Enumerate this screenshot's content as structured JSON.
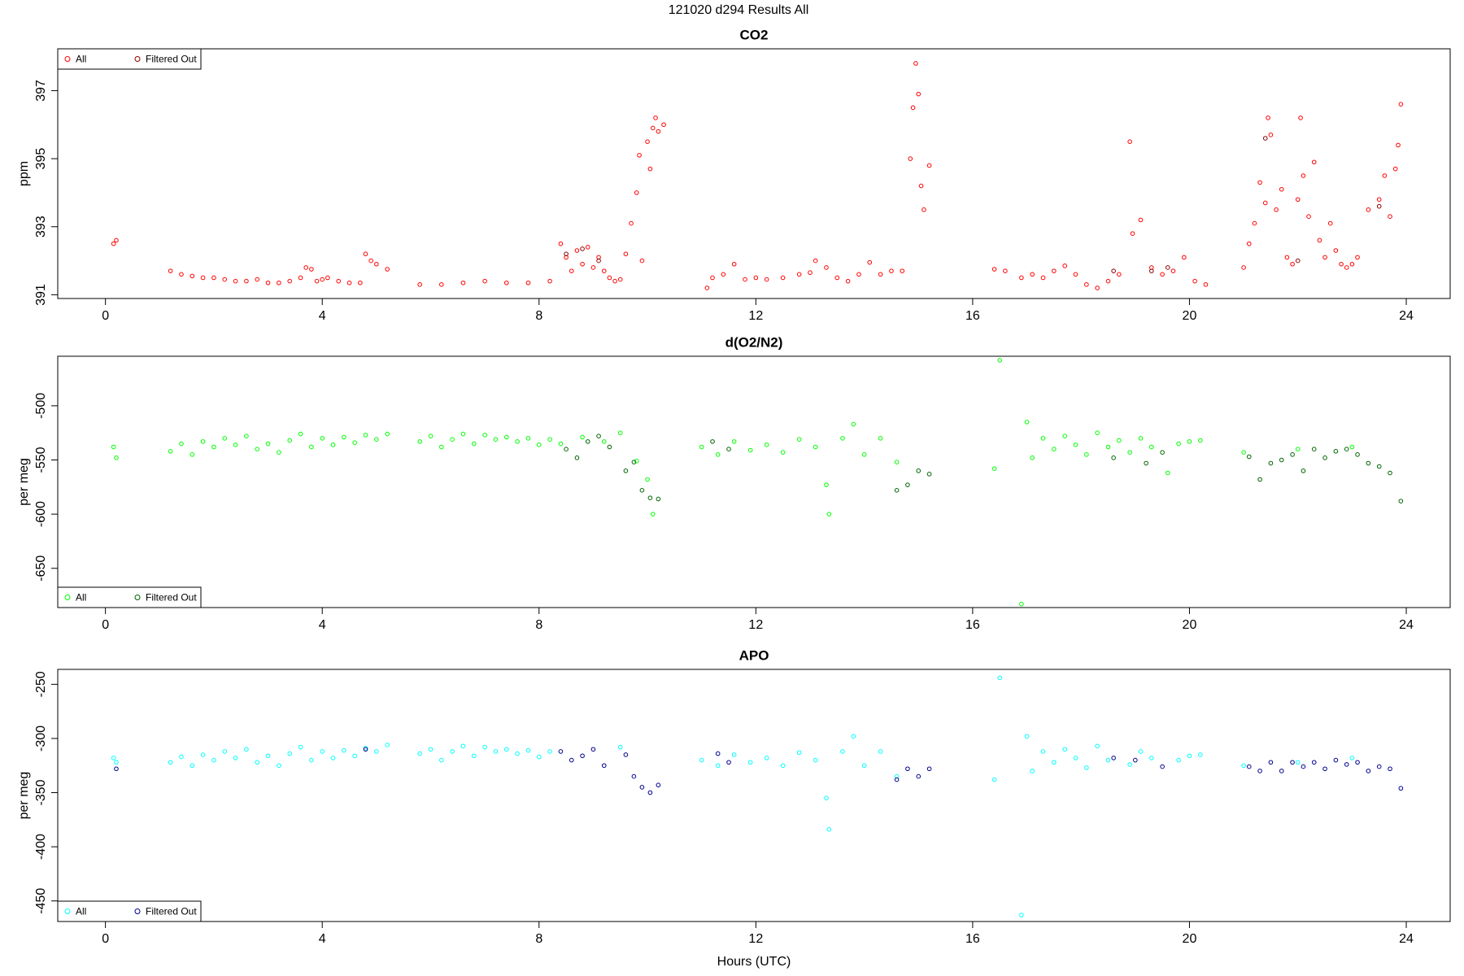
{
  "title": "121020   d294   Results All",
  "chart_data": [
    {
      "type": "scatter",
      "title": "CO2",
      "ylabel": "ppm",
      "legend": "top-left",
      "xlim": [
        -0.88,
        24.81
      ],
      "xticks": [
        0,
        4,
        8,
        12,
        16,
        20,
        24
      ],
      "ylim": [
        390.89,
        398.23
      ],
      "yticks": [
        391,
        393,
        395,
        397
      ],
      "series": [
        {
          "name": "All",
          "color": "#ff0000",
          "x": [
            0.15,
            0.2,
            1.2,
            1.4,
            1.6,
            1.8,
            2.0,
            2.2,
            2.4,
            2.6,
            2.8,
            3.0,
            3.2,
            3.4,
            3.6,
            3.7,
            3.8,
            3.9,
            4.0,
            4.1,
            4.3,
            4.5,
            4.7,
            4.8,
            4.9,
            5.0,
            5.2,
            5.8,
            6.2,
            6.6,
            7.0,
            7.4,
            7.8,
            8.2,
            8.4,
            8.5,
            8.6,
            8.7,
            8.8,
            8.9,
            9.0,
            9.1,
            9.2,
            9.3,
            9.4,
            9.5,
            9.6,
            9.7,
            9.8,
            9.85,
            9.9,
            10.0,
            10.05,
            10.1,
            10.15,
            10.2,
            10.3,
            11.1,
            11.2,
            11.4,
            11.6,
            11.8,
            12.0,
            12.2,
            12.5,
            12.8,
            13.0,
            13.1,
            13.3,
            13.5,
            13.7,
            13.9,
            14.1,
            14.3,
            14.5,
            14.7,
            14.85,
            14.9,
            14.95,
            15.0,
            15.05,
            15.1,
            15.2,
            16.4,
            16.6,
            16.9,
            17.1,
            17.3,
            17.5,
            17.7,
            17.9,
            18.1,
            18.3,
            18.5,
            18.7,
            18.9,
            18.95,
            19.1,
            19.3,
            19.5,
            19.7,
            19.9,
            20.1,
            20.3,
            21.0,
            21.1,
            21.2,
            21.3,
            21.4,
            21.45,
            21.5,
            21.6,
            21.7,
            21.8,
            21.9,
            22.0,
            22.05,
            22.1,
            22.2,
            22.3,
            22.4,
            22.5,
            22.6,
            22.7,
            22.8,
            22.9,
            23.0,
            23.1,
            23.3,
            23.5,
            23.6,
            23.7,
            23.8,
            23.85,
            23.9
          ],
          "values": [
            392.5,
            392.6,
            391.7,
            391.6,
            391.55,
            391.5,
            391.5,
            391.45,
            391.4,
            391.4,
            391.45,
            391.35,
            391.35,
            391.4,
            391.5,
            391.8,
            391.75,
            391.4,
            391.45,
            391.5,
            391.4,
            391.35,
            391.35,
            392.2,
            392.0,
            391.9,
            391.75,
            391.3,
            391.3,
            391.35,
            391.4,
            391.35,
            391.35,
            391.4,
            392.5,
            392.1,
            391.7,
            392.3,
            391.9,
            392.4,
            391.8,
            392.1,
            391.7,
            391.5,
            391.4,
            391.45,
            392.2,
            393.1,
            394.0,
            395.1,
            392.0,
            395.5,
            394.7,
            395.9,
            396.2,
            395.8,
            396.0,
            391.2,
            391.5,
            391.6,
            391.9,
            391.45,
            391.5,
            391.45,
            391.5,
            391.6,
            391.65,
            392.0,
            391.8,
            391.5,
            391.4,
            391.6,
            391.95,
            391.6,
            391.7,
            391.7,
            395.0,
            396.5,
            397.8,
            396.9,
            394.2,
            393.5,
            394.8,
            391.75,
            391.7,
            391.5,
            391.6,
            391.5,
            391.7,
            391.85,
            391.6,
            391.3,
            391.2,
            391.4,
            391.6,
            395.5,
            392.8,
            393.2,
            391.8,
            391.6,
            391.7,
            392.1,
            391.4,
            391.3,
            391.8,
            392.5,
            393.1,
            394.3,
            393.7,
            396.2,
            395.7,
            393.5,
            394.1,
            392.1,
            391.9,
            393.8,
            396.2,
            394.5,
            393.3,
            394.9,
            392.6,
            392.1,
            393.1,
            392.3,
            391.9,
            391.8,
            391.9,
            392.1,
            393.5,
            393.8,
            394.5,
            393.3,
            394.7,
            395.4,
            396.6
          ]
        },
        {
          "name": "Filtered Out",
          "color": "#8b0000",
          "x": [
            8.5,
            8.8,
            9.1,
            18.6,
            19.3,
            19.6,
            21.4,
            22.0,
            23.5
          ],
          "values": [
            392.2,
            392.35,
            392.0,
            391.7,
            391.7,
            391.8,
            395.6,
            392.0,
            393.6
          ]
        }
      ]
    },
    {
      "type": "scatter",
      "title": "d(O2/N2)",
      "ylabel": "per meg",
      "legend": "bottom-left",
      "xlim": [
        -0.88,
        24.81
      ],
      "xticks": [
        0,
        4,
        8,
        12,
        16,
        20,
        24
      ],
      "ylim": [
        -686.2,
        -454.3
      ],
      "yticks": [
        -650,
        -600,
        -550,
        -500
      ],
      "series": [
        {
          "name": "All",
          "color": "#00ff00",
          "x": [
            0.15,
            0.2,
            1.2,
            1.4,
            1.6,
            1.8,
            2.0,
            2.2,
            2.4,
            2.6,
            2.8,
            3.0,
            3.2,
            3.4,
            3.6,
            3.8,
            4.0,
            4.2,
            4.4,
            4.6,
            4.8,
            5.0,
            5.2,
            5.8,
            6.0,
            6.2,
            6.4,
            6.6,
            6.8,
            7.0,
            7.2,
            7.4,
            7.6,
            7.8,
            8.0,
            8.2,
            8.4,
            8.8,
            9.2,
            9.5,
            9.8,
            10.0,
            10.1,
            11.0,
            11.3,
            11.6,
            11.9,
            12.2,
            12.5,
            12.8,
            13.1,
            13.3,
            13.35,
            13.6,
            13.8,
            14.0,
            14.3,
            14.6,
            16.4,
            16.5,
            16.9,
            17.0,
            17.1,
            17.3,
            17.5,
            17.7,
            17.9,
            18.1,
            18.3,
            18.5,
            18.7,
            18.9,
            19.1,
            19.3,
            19.6,
            19.8,
            20.0,
            20.2,
            21.0,
            22.0,
            23.0
          ],
          "values": [
            -538,
            -548,
            -542,
            -535,
            -545,
            -533,
            -538,
            -530,
            -536,
            -528,
            -540,
            -535,
            -543,
            -532,
            -526,
            -538,
            -530,
            -536,
            -529,
            -534,
            -527,
            -531,
            -526,
            -533,
            -528,
            -538,
            -531,
            -526,
            -535,
            -527,
            -531,
            -529,
            -533,
            -530,
            -536,
            -531,
            -535,
            -529,
            -533,
            -525,
            -551,
            -568,
            -600,
            -538,
            -545,
            -533,
            -541,
            -536,
            -543,
            -531,
            -538,
            -573,
            -600,
            -530,
            -517,
            -545,
            -530,
            -552,
            -558,
            -458,
            -683,
            -515,
            -548,
            -530,
            -540,
            -528,
            -536,
            -545,
            -525,
            -538,
            -532,
            -543,
            -530,
            -538,
            -562,
            -535,
            -533,
            -532,
            -543,
            -540,
            -538
          ]
        },
        {
          "name": "Filtered Out",
          "color": "#006400",
          "x": [
            8.5,
            8.7,
            8.9,
            9.1,
            9.3,
            9.6,
            9.75,
            9.9,
            10.05,
            10.2,
            11.2,
            11.5,
            14.6,
            14.8,
            15.0,
            15.2,
            18.6,
            19.2,
            19.5,
            21.1,
            21.3,
            21.5,
            21.7,
            21.9,
            22.1,
            22.3,
            22.5,
            22.7,
            22.9,
            23.1,
            23.3,
            23.5,
            23.7,
            23.9
          ],
          "values": [
            -540,
            -548,
            -533,
            -528,
            -538,
            -560,
            -552,
            -578,
            -585,
            -586,
            -533,
            -540,
            -578,
            -573,
            -560,
            -563,
            -548,
            -553,
            -543,
            -547,
            -568,
            -553,
            -550,
            -545,
            -560,
            -540,
            -548,
            -542,
            -540,
            -545,
            -553,
            -556,
            -562,
            -588
          ]
        }
      ]
    },
    {
      "type": "scatter",
      "title": "APO",
      "ylabel": "per meg",
      "xlabel": "Hours (UTC)",
      "legend": "bottom-left",
      "xlim": [
        -0.88,
        24.81
      ],
      "xticks": [
        0,
        4,
        8,
        12,
        16,
        20,
        24
      ],
      "ylim": [
        -469,
        -236.2
      ],
      "yticks": [
        -450,
        -400,
        -350,
        -300,
        -250
      ],
      "series": [
        {
          "name": "All",
          "color": "#00ffff",
          "x": [
            0.15,
            0.2,
            1.2,
            1.4,
            1.6,
            1.8,
            2.0,
            2.2,
            2.4,
            2.6,
            2.8,
            3.0,
            3.2,
            3.4,
            3.6,
            3.8,
            4.0,
            4.2,
            4.4,
            4.6,
            4.8,
            5.0,
            5.2,
            5.8,
            6.0,
            6.2,
            6.4,
            6.6,
            6.8,
            7.0,
            7.2,
            7.4,
            7.6,
            7.8,
            8.0,
            8.2,
            9.5,
            11.0,
            11.3,
            11.6,
            11.9,
            12.2,
            12.5,
            12.8,
            13.1,
            13.3,
            13.35,
            13.6,
            13.8,
            14.0,
            14.3,
            14.6,
            16.4,
            16.5,
            16.9,
            17.0,
            17.1,
            17.3,
            17.5,
            17.7,
            17.9,
            18.1,
            18.3,
            18.5,
            18.9,
            19.1,
            19.3,
            19.8,
            20.0,
            20.2,
            21.0,
            22.0,
            23.0
          ],
          "values": [
            -318,
            -322,
            -322,
            -317,
            -325,
            -315,
            -320,
            -312,
            -318,
            -310,
            -322,
            -316,
            -325,
            -314,
            -308,
            -320,
            -312,
            -318,
            -311,
            -316,
            -309,
            -312,
            -306,
            -314,
            -310,
            -320,
            -312,
            -307,
            -316,
            -308,
            -312,
            -310,
            -314,
            -311,
            -317,
            -312,
            -308,
            -320,
            -325,
            -315,
            -322,
            -318,
            -325,
            -313,
            -320,
            -355,
            -384,
            -312,
            -298,
            -325,
            -312,
            -335,
            -338,
            -244,
            -463,
            -298,
            -330,
            -312,
            -322,
            -310,
            -318,
            -327,
            -307,
            -320,
            -324,
            -312,
            -318,
            -320,
            -316,
            -315,
            -325,
            -322,
            -318
          ]
        },
        {
          "name": "Filtered Out",
          "color": "#00008b",
          "x": [
            0.2,
            4.8,
            8.4,
            8.6,
            8.8,
            9.0,
            9.2,
            9.6,
            9.75,
            9.9,
            10.05,
            10.2,
            11.3,
            11.5,
            14.6,
            14.8,
            15.0,
            15.2,
            18.6,
            19.0,
            19.5,
            21.1,
            21.3,
            21.5,
            21.7,
            21.9,
            22.1,
            22.3,
            22.5,
            22.7,
            22.9,
            23.1,
            23.3,
            23.5,
            23.7,
            23.9
          ],
          "values": [
            -328,
            -310,
            -312,
            -320,
            -316,
            -310,
            -325,
            -315,
            -335,
            -345,
            -350,
            -343,
            -314,
            -322,
            -338,
            -328,
            -335,
            -328,
            -318,
            -320,
            -326,
            -326,
            -330,
            -322,
            -330,
            -322,
            -326,
            -322,
            -328,
            -320,
            -324,
            -322,
            -330,
            -326,
            -328,
            -346
          ]
        }
      ]
    }
  ]
}
